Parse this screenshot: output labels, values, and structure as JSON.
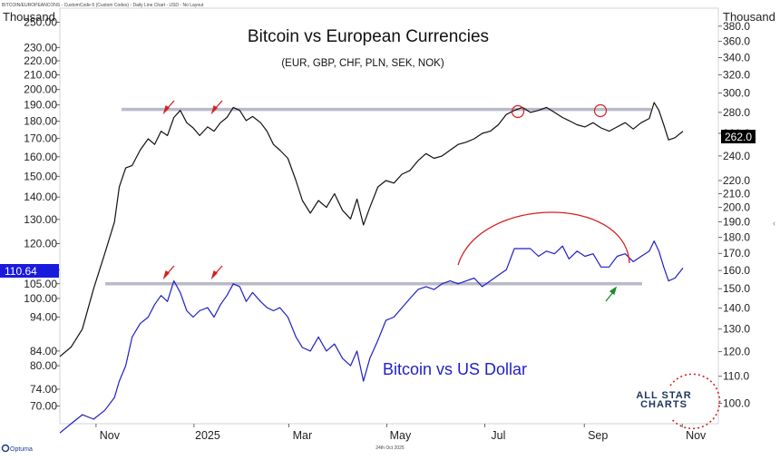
{
  "header": {
    "caption": "BITCOIN/EUROPEANCONS - CustomCode-5 (Custom Codes) - Daily Line Chart - USD - No Layout",
    "left_unit": "Thousand",
    "right_unit": "Thousand"
  },
  "footer": {
    "brand": "Optuma",
    "date": "24th Oct 2025"
  },
  "logo": {
    "line1": "ALL STAR",
    "line2": "CHARTS"
  },
  "colors": {
    "eur_line": "#111111",
    "usd_line": "#1f1fc8",
    "resistance": "#b9bac8",
    "annotation_red": "#d42020",
    "annotation_green": "#1a8c2a",
    "label_dark_bg": "#000000",
    "label_blue_bg": "#1a1adc",
    "logo_navy": "#1f3561"
  },
  "chart_data": {
    "type": "line",
    "title": "Bitcoin vs European Currencies",
    "subtitle": "(EUR, GBP, CHF, PLN, SEK, NOK)",
    "annotation_text": "Bitcoin vs US Dollar",
    "x_ticks": [
      "Nov",
      "2025",
      "Mar",
      "May",
      "Jul",
      "Sep",
      "Nov"
    ],
    "y_left": {
      "label": "Thousand",
      "scale": "log",
      "range": [
        66,
        262
      ],
      "ticks": [
        70,
        74,
        80,
        84,
        94,
        100,
        105,
        110,
        120,
        130,
        140,
        150,
        160,
        170,
        180,
        190,
        200,
        210,
        220,
        230,
        250
      ]
    },
    "y_right": {
      "label": "Thousand",
      "scale": "log",
      "range": [
        93,
        405
      ],
      "ticks": [
        100,
        110,
        120,
        130,
        140,
        150,
        160,
        170,
        180,
        190,
        200,
        210,
        220,
        240,
        260,
        280,
        300,
        320,
        340,
        360,
        380
      ]
    },
    "series": [
      {
        "name": "Bitcoin vs European Currencies",
        "axis": "right",
        "last_value": "262.0",
        "x": [
          "2024-10-01",
          "2024-10-08",
          "2024-10-15",
          "2024-10-22",
          "2024-10-29",
          "2024-11-04",
          "2024-11-07",
          "2024-11-11",
          "2024-11-15",
          "2024-11-20",
          "2024-11-25",
          "2024-11-29",
          "2024-12-03",
          "2024-12-07",
          "2024-12-11",
          "2024-12-15",
          "2024-12-19",
          "2024-12-23",
          "2024-12-27",
          "2025-01-01",
          "2025-01-05",
          "2025-01-09",
          "2025-01-13",
          "2025-01-17",
          "2025-01-21",
          "2025-01-25",
          "2025-01-29",
          "2025-02-03",
          "2025-02-07",
          "2025-02-11",
          "2025-02-15",
          "2025-02-20",
          "2025-02-25",
          "2025-03-01",
          "2025-03-06",
          "2025-03-11",
          "2025-03-16",
          "2025-03-21",
          "2025-03-26",
          "2025-03-31",
          "2025-04-04",
          "2025-04-08",
          "2025-04-12",
          "2025-04-17",
          "2025-04-22",
          "2025-04-27",
          "2025-05-02",
          "2025-05-07",
          "2025-05-12",
          "2025-05-17",
          "2025-05-22",
          "2025-05-27",
          "2025-06-01",
          "2025-06-06",
          "2025-06-11",
          "2025-06-16",
          "2025-06-21",
          "2025-06-26",
          "2025-07-01",
          "2025-07-06",
          "2025-07-11",
          "2025-07-16",
          "2025-07-21",
          "2025-07-26",
          "2025-07-31",
          "2025-08-05",
          "2025-08-10",
          "2025-08-14",
          "2025-08-19",
          "2025-08-24",
          "2025-08-29",
          "2025-09-03",
          "2025-09-08",
          "2025-09-13",
          "2025-09-18",
          "2025-09-23",
          "2025-09-28",
          "2025-10-03",
          "2025-10-06",
          "2025-10-09",
          "2025-10-12",
          "2025-10-15",
          "2025-10-19",
          "2025-10-24"
        ],
        "values": [
          118,
          122,
          130,
          150,
          170,
          190,
          215,
          230,
          232,
          245,
          255,
          250,
          262,
          258,
          275,
          282,
          270,
          265,
          258,
          266,
          262,
          270,
          275,
          285,
          282,
          272,
          276,
          270,
          262,
          250,
          245,
          238,
          220,
          205,
          196,
          205,
          200,
          210,
          198,
          192,
          206,
          188,
          200,
          215,
          220,
          218,
          225,
          228,
          236,
          242,
          238,
          240,
          245,
          250,
          252,
          255,
          260,
          262,
          268,
          278,
          282,
          285,
          280,
          282,
          285,
          280,
          275,
          272,
          268,
          266,
          270,
          265,
          262,
          266,
          270,
          264,
          270,
          274,
          290,
          282,
          268,
          254,
          256,
          262
        ]
      },
      {
        "name": "Bitcoin vs US Dollar",
        "axis": "left",
        "last_value": "110.64",
        "x": [
          "2024-10-01",
          "2024-10-08",
          "2024-10-15",
          "2024-10-22",
          "2024-10-29",
          "2024-11-04",
          "2024-11-07",
          "2024-11-11",
          "2024-11-15",
          "2024-11-20",
          "2024-11-25",
          "2024-11-29",
          "2024-12-03",
          "2024-12-07",
          "2024-12-11",
          "2024-12-15",
          "2024-12-19",
          "2024-12-23",
          "2024-12-27",
          "2025-01-01",
          "2025-01-05",
          "2025-01-09",
          "2025-01-13",
          "2025-01-17",
          "2025-01-21",
          "2025-01-25",
          "2025-01-29",
          "2025-02-03",
          "2025-02-07",
          "2025-02-11",
          "2025-02-15",
          "2025-02-20",
          "2025-02-25",
          "2025-03-01",
          "2025-03-06",
          "2025-03-11",
          "2025-03-16",
          "2025-03-21",
          "2025-03-26",
          "2025-03-31",
          "2025-04-04",
          "2025-04-08",
          "2025-04-12",
          "2025-04-17",
          "2025-04-22",
          "2025-04-27",
          "2025-05-02",
          "2025-05-07",
          "2025-05-12",
          "2025-05-17",
          "2025-05-22",
          "2025-05-27",
          "2025-06-01",
          "2025-06-06",
          "2025-06-11",
          "2025-06-16",
          "2025-06-21",
          "2025-06-26",
          "2025-07-01",
          "2025-07-06",
          "2025-07-11",
          "2025-07-16",
          "2025-07-21",
          "2025-07-26",
          "2025-07-31",
          "2025-08-05",
          "2025-08-10",
          "2025-08-14",
          "2025-08-19",
          "2025-08-24",
          "2025-08-29",
          "2025-09-03",
          "2025-09-08",
          "2025-09-13",
          "2025-09-18",
          "2025-09-23",
          "2025-09-28",
          "2025-10-03",
          "2025-10-06",
          "2025-10-09",
          "2025-10-12",
          "2025-10-15",
          "2025-10-19",
          "2025-10-24"
        ],
        "values": [
          64,
          66,
          68,
          67,
          69,
          72,
          76,
          80,
          88,
          92,
          94,
          98,
          101,
          99,
          106,
          102,
          96,
          94,
          96,
          97,
          94,
          98,
          101,
          105,
          104,
          99,
          102,
          99,
          97,
          96,
          97,
          94,
          88,
          85,
          84,
          88,
          84,
          86,
          82,
          80,
          84,
          76,
          82,
          87,
          93,
          94,
          97,
          100,
          103,
          104,
          103,
          105,
          106,
          105,
          106,
          107,
          104,
          106,
          108,
          110,
          118,
          118,
          118,
          115,
          117,
          116,
          119,
          114,
          117,
          115,
          116,
          111,
          111,
          115,
          116,
          113,
          115,
          117,
          121,
          117,
          111,
          106,
          107,
          110.64
        ]
      }
    ],
    "resistance_lines": [
      {
        "axis": "right",
        "value": 283
      },
      {
        "axis": "left",
        "value": 105
      }
    ]
  }
}
